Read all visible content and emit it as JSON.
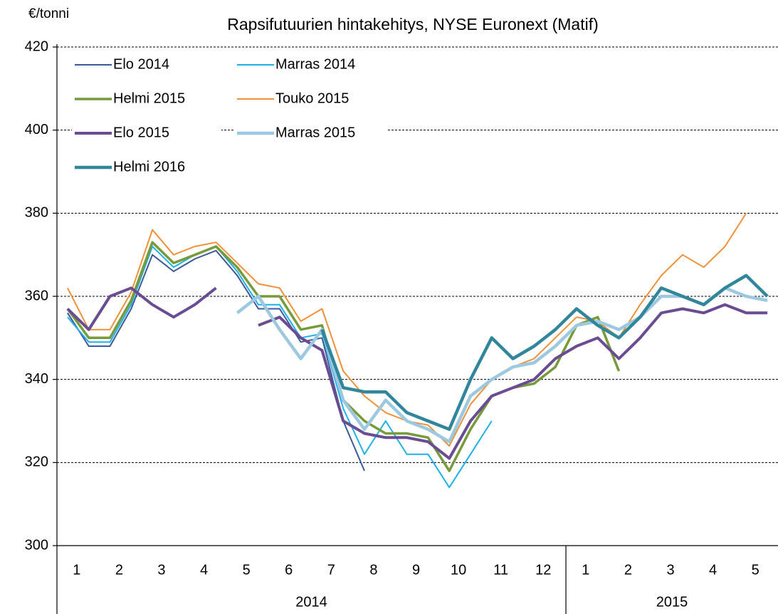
{
  "chart_data": {
    "type": "line",
    "title": "Rapsifutuurien hintakehitys, NYSE Euronext (Matif)",
    "y_label": "€/tonni",
    "categories": [
      "1",
      null,
      "2",
      null,
      "3",
      null,
      "4",
      null,
      "5",
      null,
      "6",
      null,
      "7",
      null,
      "8",
      null,
      "9",
      null,
      "10",
      null,
      "11",
      null,
      "12",
      null,
      "1",
      null,
      "2",
      null,
      "3",
      null,
      "4",
      null,
      "5",
      null
    ],
    "year_groups": [
      {
        "label": "2014",
        "count": 12
      },
      {
        "label": "2015",
        "count": 5
      }
    ],
    "ylim": [
      300,
      420
    ],
    "yticks": [
      300,
      320,
      340,
      360,
      380,
      400,
      420
    ],
    "grid": true,
    "legend": "upper left",
    "series": [
      {
        "name": "Elo 2014",
        "color": "#3a5a98",
        "values": [
          356,
          348,
          348,
          357,
          370,
          366,
          369,
          371,
          365,
          357,
          357,
          349,
          350,
          330,
          318,
          null,
          null,
          null,
          null,
          null,
          null,
          null,
          null,
          null,
          null,
          null,
          null,
          null,
          null,
          null,
          null,
          null,
          null,
          null
        ]
      },
      {
        "name": "Marras 2014",
        "color": "#1fb0ec",
        "values": [
          355,
          349,
          349,
          358,
          372,
          367,
          370,
          372,
          366,
          358,
          358,
          350,
          351,
          333,
          322,
          330,
          322,
          322,
          314,
          322,
          330,
          null,
          null,
          null,
          null,
          null,
          null,
          null,
          null,
          null,
          null,
          null,
          null,
          null
        ]
      },
      {
        "name": "Helmi 2015",
        "color": "#779a3a",
        "values": [
          357,
          350,
          350,
          359,
          373,
          368,
          370,
          372,
          367,
          360,
          360,
          352,
          353,
          335,
          330,
          327,
          327,
          326,
          318,
          328,
          336,
          338,
          339,
          343,
          353,
          355,
          342,
          null,
          null,
          null,
          null,
          null,
          null,
          null
        ]
      },
      {
        "name": "Touko 2015",
        "color": "#f0913a",
        "values": [
          362,
          352,
          352,
          361,
          376,
          370,
          372,
          373,
          368,
          363,
          362,
          354,
          357,
          342,
          336,
          332,
          330,
          329,
          324,
          334,
          340,
          343,
          345,
          350,
          355,
          354,
          350,
          358,
          365,
          370,
          367,
          372,
          380,
          null
        ]
      },
      {
        "name": "Elo 2015",
        "color": "#6a4c93",
        "values": [
          357,
          352,
          360,
          362,
          358,
          355,
          358,
          362,
          null,
          353,
          355,
          350,
          347,
          330,
          327,
          326,
          326,
          325,
          321,
          330,
          336,
          338,
          340,
          345,
          348,
          350,
          345,
          350,
          356,
          357,
          356,
          358,
          356,
          356
        ]
      },
      {
        "name": "Marras 2015",
        "color": "#9cc8e0",
        "values": [
          null,
          null,
          null,
          null,
          null,
          null,
          null,
          null,
          356,
          360,
          352,
          345,
          352,
          335,
          328,
          335,
          330,
          328,
          325,
          336,
          340,
          343,
          344,
          348,
          353,
          354,
          352,
          355,
          360,
          360,
          358,
          362,
          360,
          359
        ]
      },
      {
        "name": "Helmi 2016",
        "color": "#31869b",
        "values": [
          null,
          null,
          null,
          null,
          null,
          null,
          null,
          null,
          null,
          null,
          null,
          null,
          352,
          338,
          337,
          337,
          332,
          330,
          328,
          340,
          350,
          345,
          348,
          352,
          357,
          353,
          350,
          355,
          362,
          360,
          358,
          362,
          365,
          360
        ]
      }
    ]
  }
}
